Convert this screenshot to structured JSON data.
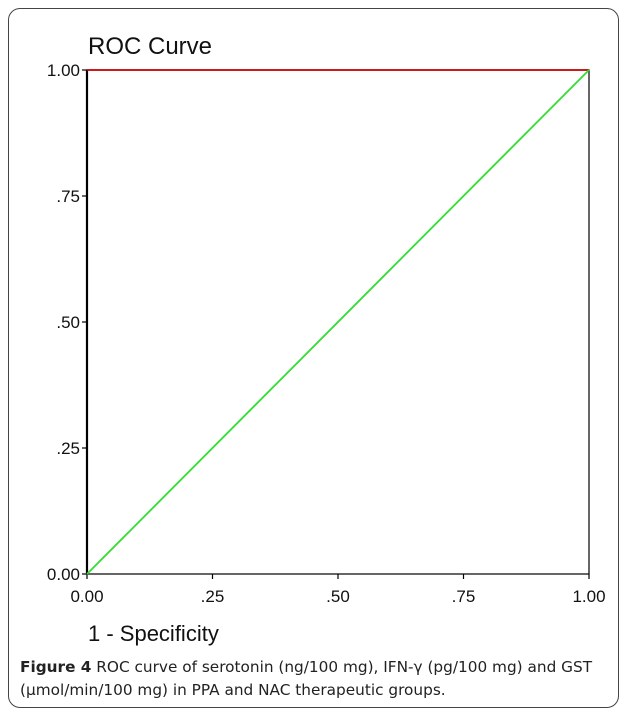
{
  "chart_data": {
    "type": "line",
    "title": "ROC Curve",
    "xlabel": "1 - Specificity",
    "ylabel": "",
    "xlim": [
      0,
      1
    ],
    "ylim": [
      0,
      1
    ],
    "xticks": [
      "0.00",
      ".25",
      ".50",
      ".75",
      "1.00"
    ],
    "yticks": [
      "0.00",
      ".25",
      ".50",
      ".75",
      "1.00"
    ],
    "grid": false,
    "series": [
      {
        "color": "#000000",
        "x": [
          0,
          0
        ],
        "y": [
          0,
          1
        ]
      },
      {
        "color": "#cc0000",
        "x": [
          0,
          1
        ],
        "y": [
          1,
          1
        ]
      },
      {
        "color": "#33dd33",
        "x": [
          0,
          1
        ],
        "y": [
          0,
          1
        ]
      }
    ]
  },
  "caption": {
    "label": "Figure 4",
    "text": " ROC curve of serotonin (ng/100 mg), IFN-γ (pg/100 mg) and GST (μmol/min/100 mg) in PPA and NAC therapeutic groups."
  }
}
